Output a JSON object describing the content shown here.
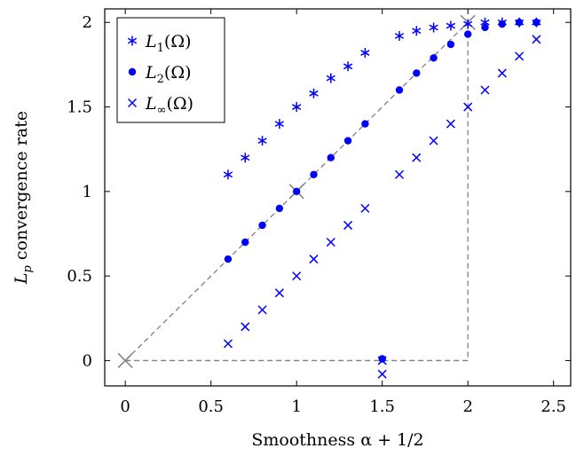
{
  "chart_data": {
    "type": "scatter",
    "xlabel": "Smoothness α + 1/2",
    "ylabel": "L_p convergence rate",
    "xlim": [
      -0.12,
      2.6
    ],
    "ylim": [
      -0.15,
      2.08
    ],
    "x_ticks": [
      0,
      0.5,
      1,
      1.5,
      2,
      2.5
    ],
    "y_ticks": [
      0,
      0.5,
      1,
      1.5,
      2
    ],
    "x_tick_labels": [
      "0",
      "0.5",
      "1",
      "1.5",
      "2",
      "2.5"
    ],
    "y_tick_labels": [
      "0",
      "0.5",
      "1",
      "1.5",
      "2"
    ],
    "grid": false,
    "legend_position": "top-left",
    "series": [
      {
        "name": "L_1(Ω)",
        "label_main": "L",
        "label_sub": "1",
        "label_tail": "(Ω)",
        "marker": "asterisk",
        "color": "#0000ff",
        "points": [
          [
            0.6,
            1.1
          ],
          [
            0.7,
            1.2
          ],
          [
            0.8,
            1.3
          ],
          [
            0.9,
            1.4
          ],
          [
            1.0,
            1.5
          ],
          [
            1.1,
            1.58
          ],
          [
            1.2,
            1.67
          ],
          [
            1.3,
            1.74
          ],
          [
            1.4,
            1.82
          ],
          [
            1.6,
            1.92
          ],
          [
            1.7,
            1.95
          ],
          [
            1.8,
            1.97
          ],
          [
            1.9,
            1.98
          ],
          [
            2.0,
            1.99
          ],
          [
            2.1,
            2.0
          ],
          [
            2.2,
            2.0
          ],
          [
            2.3,
            2.0
          ],
          [
            2.4,
            2.0
          ]
        ]
      },
      {
        "name": "L_2(Ω)",
        "label_main": "L",
        "label_sub": "2",
        "label_tail": "(Ω)",
        "marker": "dot",
        "color": "#0000ff",
        "points": [
          [
            0.6,
            0.6
          ],
          [
            0.7,
            0.7
          ],
          [
            0.8,
            0.8
          ],
          [
            0.9,
            0.9
          ],
          [
            1.0,
            1.0
          ],
          [
            1.1,
            1.1
          ],
          [
            1.2,
            1.2
          ],
          [
            1.3,
            1.3
          ],
          [
            1.4,
            1.4
          ],
          [
            1.5,
            0.01
          ],
          [
            1.6,
            1.6
          ],
          [
            1.7,
            1.7
          ],
          [
            1.8,
            1.79
          ],
          [
            1.9,
            1.87
          ],
          [
            2.0,
            1.93
          ],
          [
            2.1,
            1.97
          ],
          [
            2.2,
            1.99
          ],
          [
            2.3,
            2.0
          ],
          [
            2.4,
            2.0
          ]
        ]
      },
      {
        "name": "L_∞(Ω)",
        "label_main": "L",
        "label_sub": "∞",
        "label_tail": "(Ω)",
        "marker": "cross",
        "color": "#0000ff",
        "points": [
          [
            0.6,
            0.1
          ],
          [
            0.7,
            0.2
          ],
          [
            0.8,
            0.3
          ],
          [
            0.9,
            0.4
          ],
          [
            1.0,
            0.5
          ],
          [
            1.1,
            0.6
          ],
          [
            1.2,
            0.7
          ],
          [
            1.3,
            0.8
          ],
          [
            1.4,
            0.9
          ],
          [
            1.5,
            0.0
          ],
          [
            1.5,
            -0.08
          ],
          [
            1.6,
            1.1
          ],
          [
            1.7,
            1.2
          ],
          [
            1.8,
            1.3
          ],
          [
            1.9,
            1.4
          ],
          [
            2.0,
            1.5
          ],
          [
            2.1,
            1.6
          ],
          [
            2.2,
            1.7
          ],
          [
            2.3,
            1.8
          ],
          [
            2.4,
            1.9
          ]
        ]
      }
    ],
    "reference_lines": {
      "color": "#808080",
      "dashed_paths": [
        [
          [
            0,
            0
          ],
          [
            1,
            1
          ],
          [
            2,
            2
          ]
        ],
        [
          [
            0,
            0
          ],
          [
            2,
            0
          ],
          [
            2,
            2
          ]
        ]
      ],
      "gray_cross_markers": [
        [
          0,
          0
        ],
        [
          1,
          1
        ],
        [
          2,
          2
        ]
      ]
    }
  }
}
